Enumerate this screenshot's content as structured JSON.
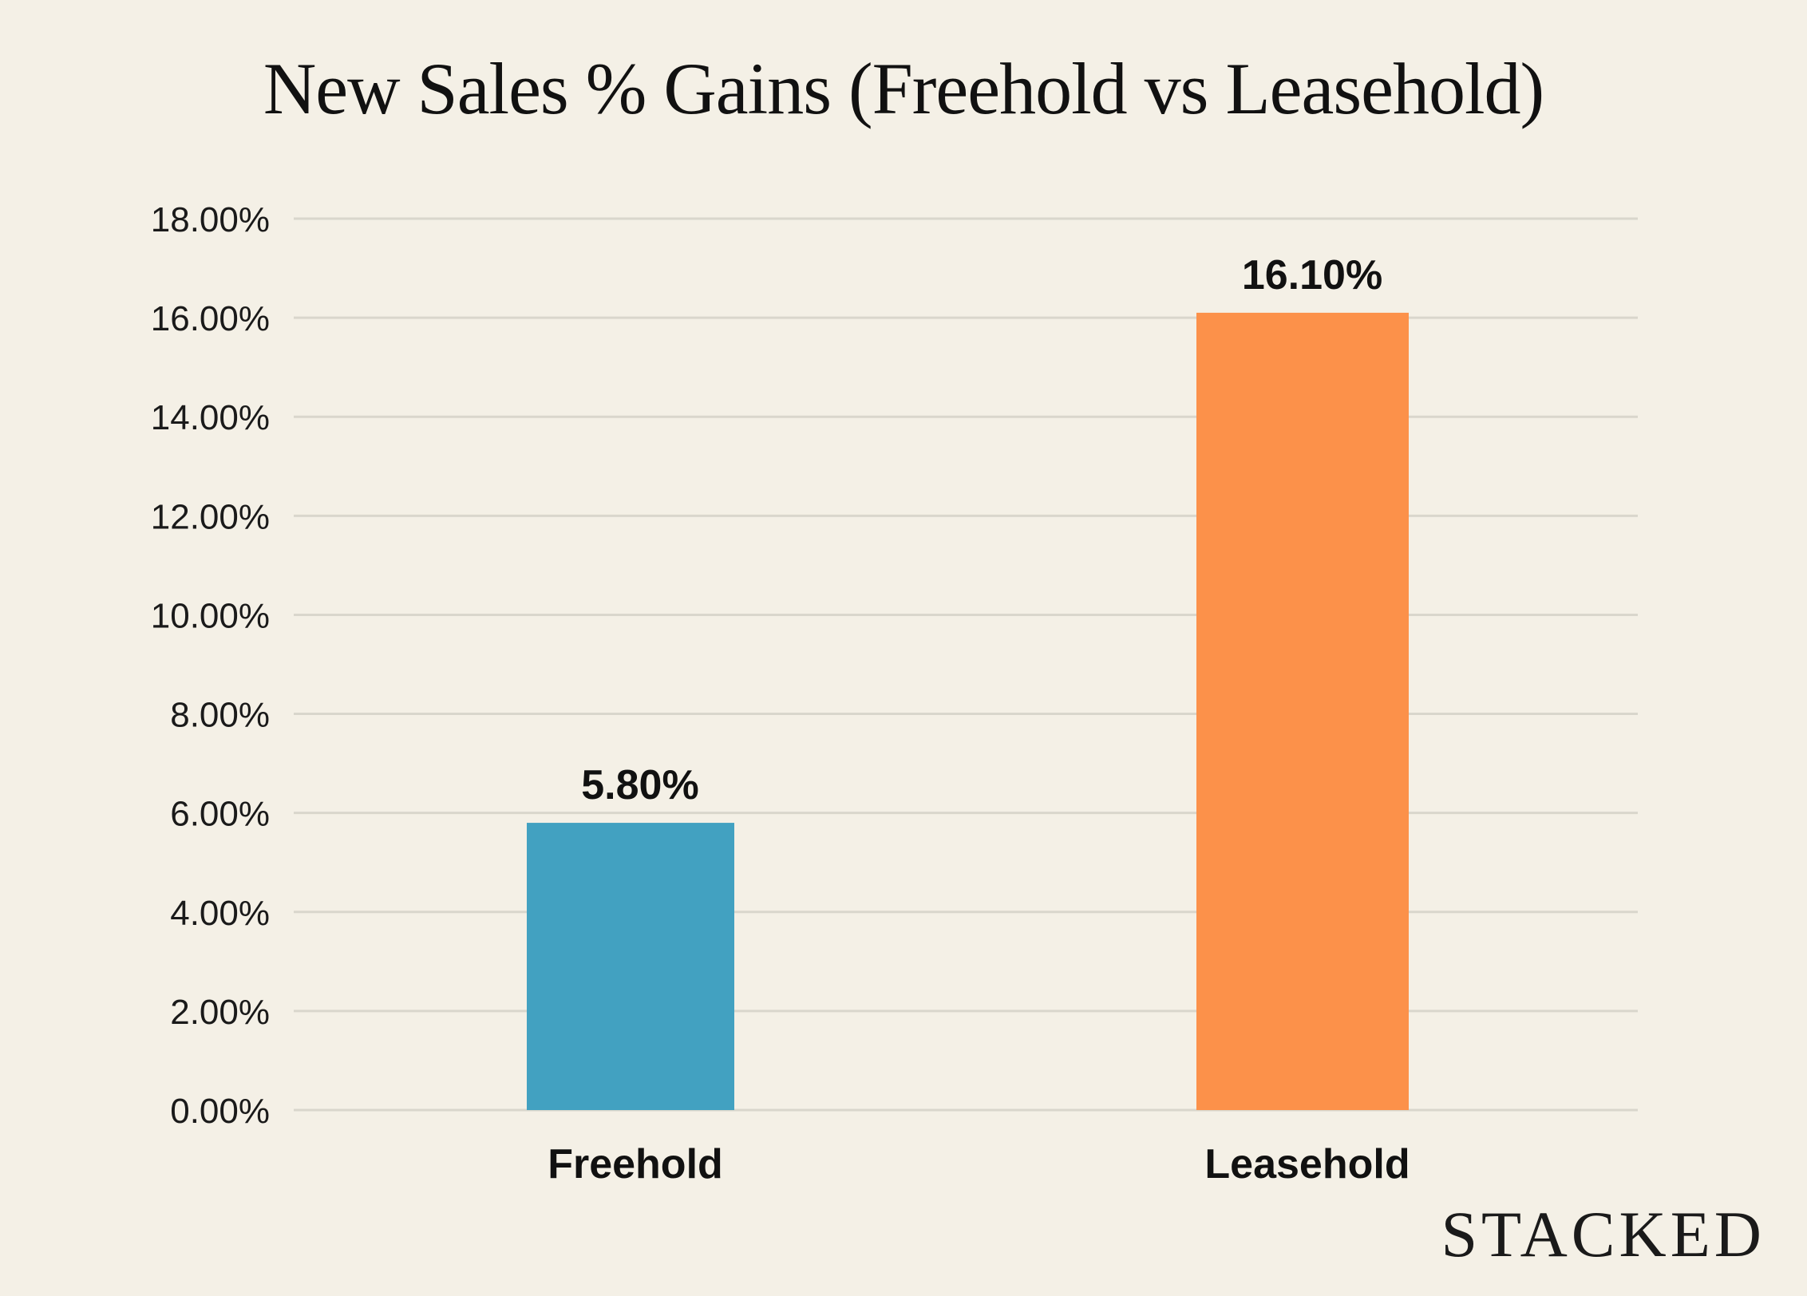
{
  "chart_data": {
    "type": "bar",
    "title": "New Sales % Gains (Freehold vs Leasehold)",
    "xlabel": "",
    "ylabel": "",
    "categories": [
      "Freehold",
      "Leasehold"
    ],
    "values": [
      5.8,
      16.1
    ],
    "data_labels": [
      "5.80%",
      "16.10%"
    ],
    "bar_colors": [
      "#42a1c1",
      "#fc914a"
    ],
    "ylim": [
      0,
      18
    ],
    "yticks": [
      0,
      2,
      4,
      6,
      8,
      10,
      12,
      14,
      16,
      18
    ],
    "ytick_labels": [
      "0.00%",
      "2.00%",
      "4.00%",
      "6.00%",
      "8.00%",
      "10.00%",
      "12.00%",
      "14.00%",
      "16.00%",
      "18.00%"
    ],
    "grid": true,
    "legend": "none"
  },
  "branding": {
    "logo_text": "STACKED"
  },
  "colors": {
    "background": "#f4f0e6",
    "gridline": "#d9d6cc",
    "text": "#111111"
  }
}
